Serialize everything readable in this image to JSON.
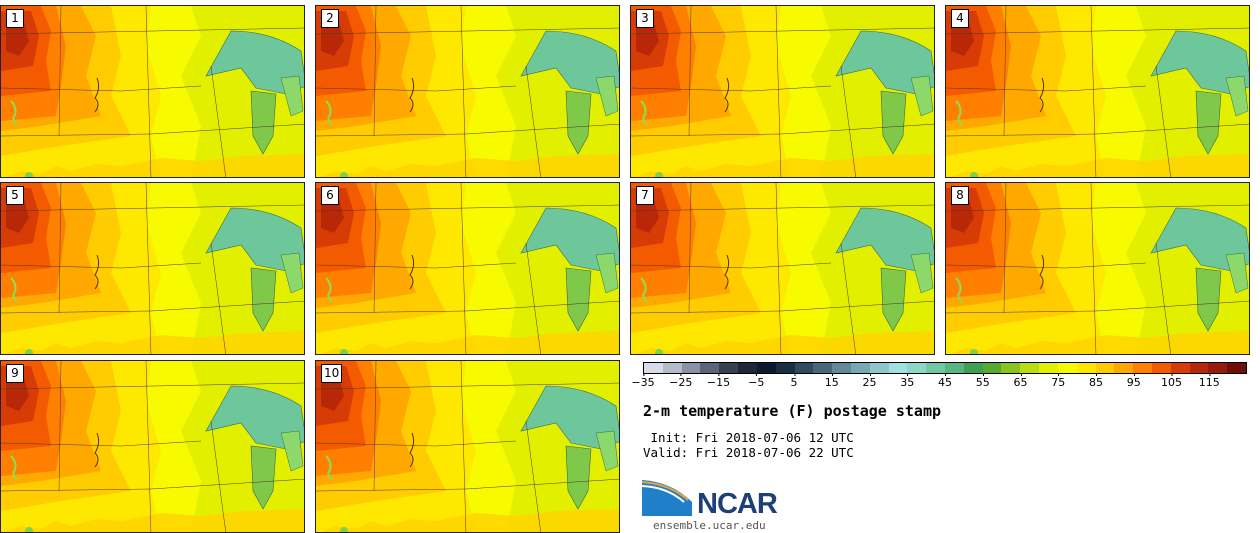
{
  "panels": [
    {
      "label": "1"
    },
    {
      "label": "2"
    },
    {
      "label": "3"
    },
    {
      "label": "4"
    },
    {
      "label": "5"
    },
    {
      "label": "6"
    },
    {
      "label": "7"
    },
    {
      "label": "8"
    },
    {
      "label": "9"
    },
    {
      "label": "10"
    }
  ],
  "colorbar": {
    "colors": [
      "#d8dce8",
      "#b4bcc8",
      "#8a93a5",
      "#5c6578",
      "#37404f",
      "#1c2838",
      "#0c1a2c",
      "#1a2f44",
      "#2e4a5e",
      "#466878",
      "#618a96",
      "#78a9b2",
      "#8fc6ca",
      "#a0e0de",
      "#8cd8c4",
      "#72c8a2",
      "#58b67e",
      "#3f9f55",
      "#55ac2e",
      "#88c41c",
      "#b8dc12",
      "#e0f000",
      "#f6fa00",
      "#ffe800",
      "#ffcc00",
      "#ffa800",
      "#ff8000",
      "#f45a00",
      "#d83c06",
      "#b82808",
      "#981c0a",
      "#6e1008"
    ],
    "tick_labels": [
      "−35",
      "−25",
      "−15",
      "−5",
      "5",
      "15",
      "25",
      "35",
      "45",
      "55",
      "65",
      "75",
      "85",
      "95",
      "105",
      "115"
    ]
  },
  "title": "2-m temperature (F) postage stamp",
  "init_line": " Init: Fri 2018-07-06 12 UTC",
  "valid_line": "Valid: Fri 2018-07-06 22 UTC",
  "logo": {
    "text": "NCAR",
    "url": "ensemble.ucar.edu",
    "color": "#1f3f78"
  }
}
